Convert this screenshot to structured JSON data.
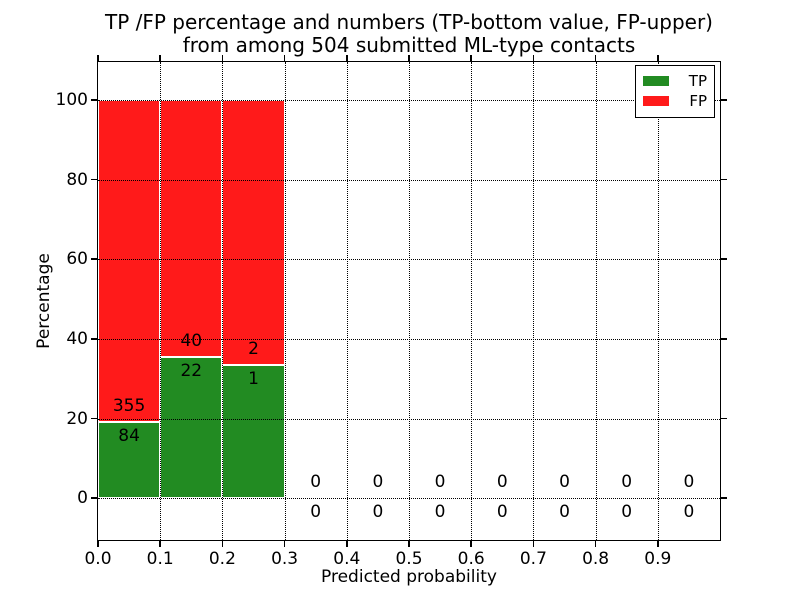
{
  "chart_data": {
    "type": "bar",
    "stacked": true,
    "title_lines": [
      "TP /FP percentage and numbers (TP-bottom value, FP-upper)",
      "from among 504 submitted ML-type contacts"
    ],
    "xlabel": "Predicted probability",
    "ylabel": "Percentage",
    "xlim": [
      0,
      1.0
    ],
    "ylim": [
      -10.5,
      109.5
    ],
    "xticks": {
      "values": [
        0.0,
        0.1,
        0.2,
        0.3,
        0.4,
        0.5,
        0.6,
        0.7,
        0.8,
        0.9
      ],
      "labels": [
        "0.0",
        "0.1",
        "0.2",
        "0.3",
        "0.4",
        "0.5",
        "0.6",
        "0.7",
        "0.8",
        "0.9"
      ]
    },
    "yticks": {
      "values": [
        0,
        20,
        40,
        60,
        80,
        100
      ],
      "labels": [
        "0",
        "20",
        "40",
        "60",
        "80",
        "100"
      ]
    },
    "grid_style": "dotted",
    "total_contacts": 504,
    "colors": {
      "tp": "#228b22",
      "fp": "#ff1a1a"
    },
    "legend": {
      "position": "upper-right",
      "entries": [
        {
          "label": "TP",
          "color": "#228b22"
        },
        {
          "label": "FP",
          "color": "#ff1a1a"
        }
      ]
    },
    "bins": [
      {
        "range": [
          0.0,
          0.1
        ],
        "tp": 84,
        "fp": 355,
        "tp_pct": 19.13,
        "fp_pct": 80.87
      },
      {
        "range": [
          0.1,
          0.2
        ],
        "tp": 22,
        "fp": 40,
        "tp_pct": 35.48,
        "fp_pct": 64.52
      },
      {
        "range": [
          0.2,
          0.3
        ],
        "tp": 1,
        "fp": 2,
        "tp_pct": 33.33,
        "fp_pct": 66.67
      },
      {
        "range": [
          0.3,
          0.4
        ],
        "tp": 0,
        "fp": 0,
        "tp_pct": 0,
        "fp_pct": 0
      },
      {
        "range": [
          0.4,
          0.5
        ],
        "tp": 0,
        "fp": 0,
        "tp_pct": 0,
        "fp_pct": 0
      },
      {
        "range": [
          0.5,
          0.6
        ],
        "tp": 0,
        "fp": 0,
        "tp_pct": 0,
        "fp_pct": 0
      },
      {
        "range": [
          0.6,
          0.7
        ],
        "tp": 0,
        "fp": 0,
        "tp_pct": 0,
        "fp_pct": 0
      },
      {
        "range": [
          0.7,
          0.8
        ],
        "tp": 0,
        "fp": 0,
        "tp_pct": 0,
        "fp_pct": 0
      },
      {
        "range": [
          0.8,
          0.9
        ],
        "tp": 0,
        "fp": 0,
        "tp_pct": 0,
        "fp_pct": 0
      },
      {
        "range": [
          0.9,
          1.0
        ],
        "tp": 0,
        "fp": 0,
        "tp_pct": 0,
        "fp_pct": 0
      }
    ],
    "annotation_offsets": {
      "fp_label_pct": 4.0,
      "tp_label_pct": -3.5
    }
  }
}
